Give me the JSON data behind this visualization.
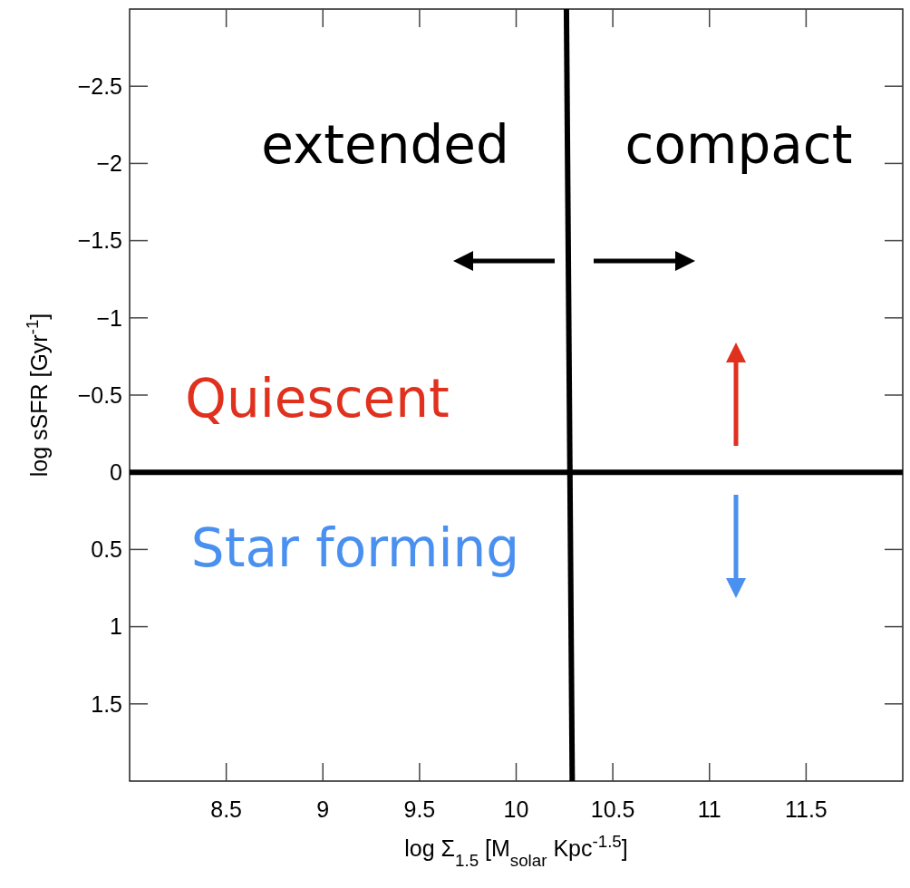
{
  "chart_data": {
    "type": "line",
    "xlabel": "log Σ$_{1.5}$ [M$_{solar}$ Kpc$^{-1.5}$]",
    "ylabel": "log sSFR [Gyr$^{-1}$]",
    "xlim": [
      8,
      12
    ],
    "xticks": [
      8.5,
      9,
      9.5,
      10,
      10.5,
      11,
      11.5
    ],
    "ylim": [
      2,
      -3
    ],
    "yticks": [
      -2.5,
      -2,
      -1.5,
      -1,
      -0.5,
      0,
      0.5,
      1,
      1.5
    ],
    "series": [
      {
        "color": "#000000",
        "x": [
          10.26,
          10.29
        ],
        "values": [
          -3,
          2
        ]
      },
      {
        "color": "#000000",
        "x": [
          8,
          12
        ],
        "values": [
          0,
          0
        ]
      }
    ],
    "annotations": [
      "extended",
      "compact",
      "Quiescent",
      "Star forming"
    ],
    "grid": false,
    "marker": "none",
    "line_style": "solid"
  }
}
